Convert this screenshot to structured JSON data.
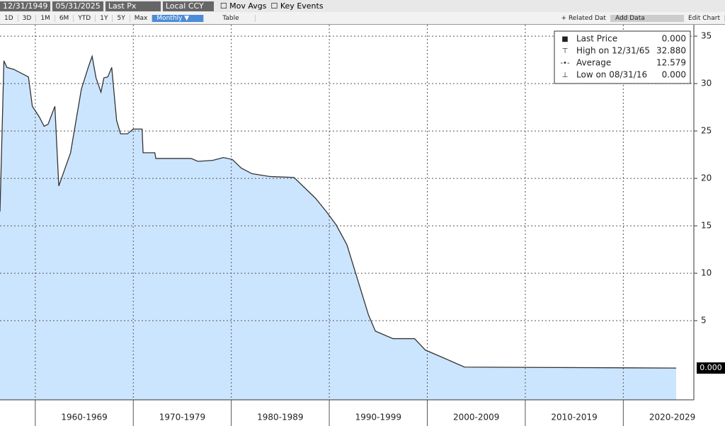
{
  "toolbar": {
    "start_date": "12/31/1949",
    "end_date": "05/31/2025",
    "field": "Last Px",
    "currency": "Local CCY",
    "mov_avgs": "Mov Avgs",
    "key_events": "Key Events",
    "periods": [
      "1D",
      "3D",
      "1M",
      "6M",
      "YTD",
      "1Y",
      "5Y",
      "Max"
    ],
    "frequency": "Monthly ▼",
    "table": "Table",
    "related": "+ Related Dat",
    "add_data": "Add Data",
    "edit_chart": "Edit Chart"
  },
  "legend": [
    {
      "label": "Last Price",
      "value": "0.000"
    },
    {
      "label": "High on 12/31/65",
      "value": "32.880"
    },
    {
      "label": "Average",
      "value": "12.579"
    },
    {
      "label": "Low on 08/31/16",
      "value": "0.000"
    }
  ],
  "chart_data": {
    "type": "area",
    "color": "#cce5ff",
    "line_color": "#333333",
    "grid": true,
    "last_label": "0.000",
    "x": [
      1956.4,
      1956.8,
      1957.1,
      1957.8,
      1959.3,
      1959.7,
      1960.4,
      1960.9,
      1961.3,
      1962.0,
      1962.4,
      1963.6,
      1964.7,
      1965.4,
      1965.8,
      1966.2,
      1966.7,
      1967.0,
      1967.4,
      1967.8,
      1968.3,
      1968.7,
      1969.4,
      1970.0,
      1970.9,
      1971.0,
      1972.2,
      1972.3,
      1975.9,
      1976.6,
      1978.1,
      1979.2,
      1980.1,
      1981.0,
      1982.1,
      1983.9,
      1986.4,
      1987.5,
      1988.6,
      1989.7,
      1990.7,
      1991.8,
      1992.9,
      1994.0,
      1994.7,
      1996.5,
      1998.7,
      1999.8,
      2001.6,
      2003.8,
      2025.4
    ],
    "values": [
      16.5,
      32.4,
      31.7,
      31.5,
      30.7,
      27.6,
      26.5,
      25.5,
      25.7,
      27.6,
      19.2,
      22.7,
      29.4,
      31.7,
      32.88,
      30.6,
      29.1,
      30.6,
      30.7,
      31.7,
      26.1,
      24.7,
      24.7,
      25.2,
      25.2,
      22.7,
      22.7,
      22.1,
      22.1,
      21.8,
      21.9,
      22.2,
      22.0,
      21.1,
      20.5,
      20.2,
      20.1,
      19.0,
      17.9,
      16.5,
      15.1,
      13.0,
      9.3,
      5.6,
      3.9,
      3.1,
      3.1,
      1.9,
      1.1,
      0.1,
      0
    ],
    "xlim": [
      1956.4,
      2027.2
    ],
    "ylim": [
      -3.35,
      36.2
    ],
    "yticks": [
      5,
      10,
      15,
      20,
      25,
      30,
      35
    ],
    "xticks": [
      {
        "value": 1960,
        "label": "1960-1969"
      },
      {
        "value": 1970,
        "label": "1970-1979"
      },
      {
        "value": 1980,
        "label": "1980-1989"
      },
      {
        "value": 1990,
        "label": "1990-1999"
      },
      {
        "value": 2000,
        "label": "2000-2009"
      },
      {
        "value": 2010,
        "label": "2010-2019"
      },
      {
        "value": 2020,
        "label": "2020-2029"
      }
    ]
  }
}
